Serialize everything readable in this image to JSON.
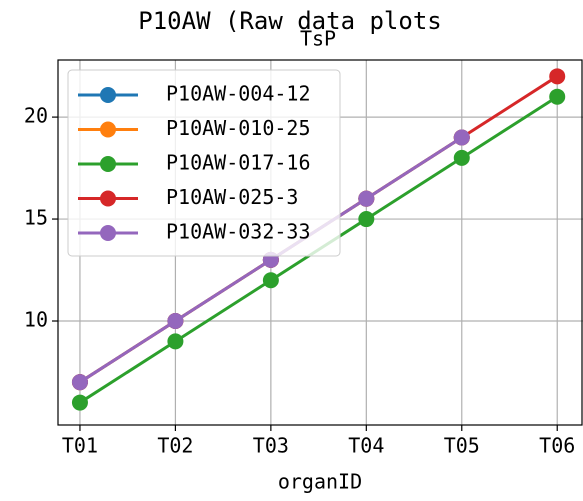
{
  "chart_data": {
    "type": "line",
    "title": "P10AW (Raw data plots",
    "subtitle": "TsP",
    "x_label": "organID",
    "categories": [
      "T01",
      "T02",
      "T03",
      "T04",
      "T05",
      "T06"
    ],
    "series": [
      {
        "name": "P10AW-004-12",
        "color": "#1f77b4",
        "values": [
          7,
          10,
          13,
          16,
          19,
          null
        ]
      },
      {
        "name": "P10AW-010-25",
        "color": "#ff7f0e",
        "values": [
          7,
          10,
          13,
          16,
          19,
          null
        ]
      },
      {
        "name": "P10AW-017-16",
        "color": "#2ca02c",
        "values": [
          6,
          9,
          12,
          15,
          18,
          21
        ]
      },
      {
        "name": "P10AW-025-3",
        "color": "#d62728",
        "values": [
          7,
          10,
          13,
          16,
          19,
          22
        ]
      },
      {
        "name": "P10AW-032-33",
        "color": "#9467bd",
        "values": [
          7,
          10,
          13,
          16,
          19,
          null
        ]
      }
    ],
    "ylim": [
      4.9,
      22.8
    ],
    "yticks": [
      10,
      15,
      20
    ],
    "grid": true,
    "legend": "upper left"
  }
}
